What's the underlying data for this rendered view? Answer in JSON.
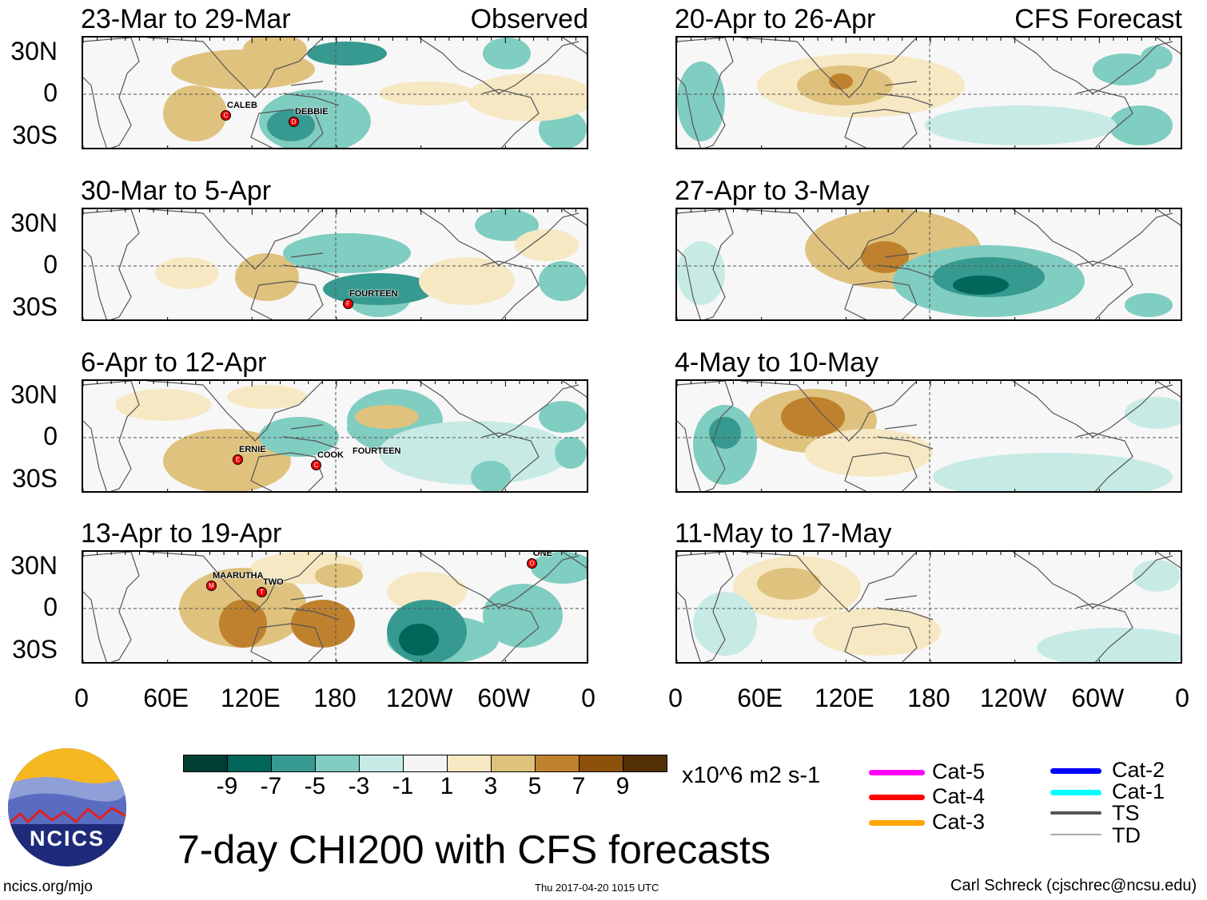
{
  "observed_label": "Observed",
  "forecast_label": "CFS Forecast",
  "panels_left": [
    {
      "title": "23-Mar to 29-Mar",
      "storms": [
        "CALEB",
        "DEBBIE"
      ]
    },
    {
      "title": "30-Mar to 5-Apr",
      "storms": [
        "FOURTEEN"
      ]
    },
    {
      "title": "6-Apr to 12-Apr",
      "storms": [
        "ERNIE",
        "COOK",
        "FOURTEEN"
      ]
    },
    {
      "title": "13-Apr to 19-Apr",
      "storms": [
        "MAARUTHA",
        "TWO",
        "ONE"
      ]
    }
  ],
  "panels_right": [
    {
      "title": "20-Apr to 26-Apr"
    },
    {
      "title": "27-Apr to 3-May"
    },
    {
      "title": "4-May to 10-May"
    },
    {
      "title": "11-May to 17-May"
    }
  ],
  "lat_labels": [
    "30N",
    "0",
    "30S"
  ],
  "lon_labels": [
    "0",
    "60E",
    "120E",
    "180",
    "120W",
    "60W",
    "0"
  ],
  "colorbar": {
    "colors": [
      "#013f33",
      "#02665a",
      "#379a90",
      "#80cdc1",
      "#c7eae5",
      "#f5f5f5",
      "#f6e8c3",
      "#dfc27d",
      "#bf812d",
      "#8c510a",
      "#543005"
    ],
    "labels": [
      "-9",
      "-7",
      "-5",
      "-3",
      "-1",
      "1",
      "3",
      "5",
      "7",
      "9"
    ],
    "units": "x10^6 m2 s-1"
  },
  "legend": [
    {
      "label": "Cat-5",
      "color": "#ff00ff"
    },
    {
      "label": "Cat-4",
      "color": "#ff0000"
    },
    {
      "label": "Cat-3",
      "color": "#ffa500"
    },
    {
      "label": "Cat-2",
      "color": "#0000ff"
    },
    {
      "label": "Cat-1",
      "color": "#00ffff"
    },
    {
      "label": "TS",
      "color": "#555555"
    },
    {
      "label": "TD",
      "color": "#aaaaaa"
    }
  ],
  "logo_text": "NCICS",
  "main_title": "7-day CHI200 with CFS forecasts",
  "site": "ncics.org/mjo",
  "timestamp": "Thu 2017-04-20 1015 UTC",
  "author": "Carl Schreck (cjschrec@ncsu.edu)"
}
